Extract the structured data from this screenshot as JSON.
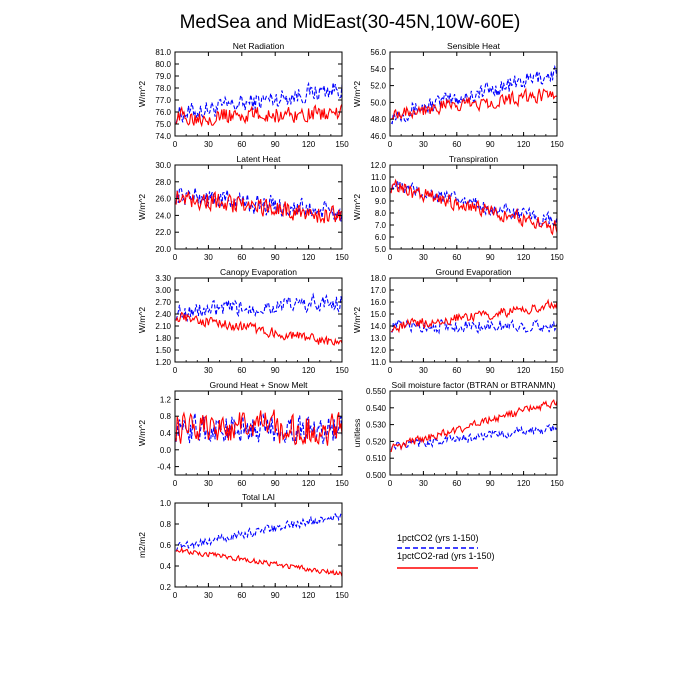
{
  "figure_title": "MedSea and MidEast(30-45N,10W-60E)",
  "legend": [
    {
      "label": "1pctCO2 (yrs 1-150)",
      "color": "#0000ff",
      "dashed": true
    },
    {
      "label": "1pctCO2-rad (yrs 1-150)",
      "color": "#ff0000",
      "dashed": false
    }
  ],
  "chart_data": [
    {
      "type": "line",
      "title": "Net Radiation",
      "ylabel": "W/m^2",
      "xlim": [
        0,
        150
      ],
      "ylim": [
        74,
        81
      ],
      "xticks": [
        0,
        30,
        60,
        90,
        120,
        150
      ],
      "yticks": [
        "74.0",
        "75.0",
        "76.0",
        "77.0",
        "78.0",
        "79.0",
        "80.0",
        "81.0"
      ],
      "series": [
        {
          "name": "1pctCO2 (yrs 1-150)",
          "start": 75.8,
          "end": 78.0,
          "noise": 0.9
        },
        {
          "name": "1pctCO2-rad (yrs 1-150)",
          "start": 75.6,
          "end": 75.9,
          "noise": 0.8
        }
      ]
    },
    {
      "type": "line",
      "title": "Sensible Heat",
      "ylabel": "W/m^2",
      "xlim": [
        0,
        150
      ],
      "ylim": [
        46,
        56
      ],
      "xticks": [
        0,
        30,
        60,
        90,
        120,
        150
      ],
      "yticks": [
        "46.0",
        "48.0",
        "50.0",
        "52.0",
        "54.0",
        "56.0"
      ],
      "series": [
        {
          "name": "1pctCO2 (yrs 1-150)",
          "start": 48.5,
          "end": 53.5,
          "noise": 1.2
        },
        {
          "name": "1pctCO2-rad (yrs 1-150)",
          "start": 48.8,
          "end": 51.0,
          "noise": 1.0
        }
      ]
    },
    {
      "type": "line",
      "title": "Latent Heat",
      "ylabel": "W/m^2",
      "xlim": [
        0,
        150
      ],
      "ylim": [
        20,
        30
      ],
      "xticks": [
        0,
        30,
        60,
        90,
        120,
        150
      ],
      "yticks": [
        "20.0",
        "22.0",
        "24.0",
        "26.0",
        "28.0",
        "30.0"
      ],
      "series": [
        {
          "name": "1pctCO2 (yrs 1-150)",
          "start": 26.5,
          "end": 24.2,
          "noise": 1.4
        },
        {
          "name": "1pctCO2-rad (yrs 1-150)",
          "start": 26.3,
          "end": 23.8,
          "noise": 1.3
        }
      ]
    },
    {
      "type": "line",
      "title": "Transpiration",
      "ylabel": "W/m^2",
      "xlim": [
        0,
        150
      ],
      "ylim": [
        5,
        12
      ],
      "xticks": [
        0,
        30,
        60,
        90,
        120,
        150
      ],
      "yticks": [
        "5.0",
        "6.0",
        "7.0",
        "8.0",
        "9.0",
        "10.0",
        "11.0",
        "12.0"
      ],
      "series": [
        {
          "name": "1pctCO2 (yrs 1-150)",
          "start": 10.3,
          "end": 7.2,
          "noise": 0.7
        },
        {
          "name": "1pctCO2-rad (yrs 1-150)",
          "start": 10.2,
          "end": 6.8,
          "noise": 0.7
        }
      ]
    },
    {
      "type": "line",
      "title": "Canopy Evaporation",
      "ylabel": "W/m^2",
      "xlim": [
        0,
        150
      ],
      "ylim": [
        1.2,
        3.3
      ],
      "xticks": [
        0,
        30,
        60,
        90,
        120,
        150
      ],
      "yticks": [
        "1.20",
        "1.50",
        "1.80",
        "2.10",
        "2.40",
        "2.70",
        "3.00",
        "3.30"
      ],
      "series": [
        {
          "name": "1pctCO2 (yrs 1-150)",
          "start": 2.45,
          "end": 2.7,
          "noise": 0.25
        },
        {
          "name": "1pctCO2-rad (yrs 1-150)",
          "start": 2.35,
          "end": 1.65,
          "noise": 0.15
        }
      ]
    },
    {
      "type": "line",
      "title": "Ground Evaporation",
      "ylabel": "W/m^2",
      "xlim": [
        0,
        150
      ],
      "ylim": [
        11,
        18
      ],
      "xticks": [
        0,
        30,
        60,
        90,
        120,
        150
      ],
      "yticks": [
        "11.0",
        "12.0",
        "13.0",
        "14.0",
        "15.0",
        "16.0",
        "17.0",
        "18.0"
      ],
      "series": [
        {
          "name": "1pctCO2 (yrs 1-150)",
          "start": 14.0,
          "end": 14.0,
          "noise": 0.6
        },
        {
          "name": "1pctCO2-rad (yrs 1-150)",
          "start": 13.9,
          "end": 15.8,
          "noise": 0.5
        }
      ]
    },
    {
      "type": "line",
      "title": "Ground Heat + Snow Melt",
      "ylabel": "W/m^2",
      "xlim": [
        0,
        150
      ],
      "ylim": [
        -0.6,
        1.4
      ],
      "xticks": [
        0,
        30,
        60,
        90,
        120,
        150
      ],
      "yticks": [
        "-0.4",
        "0.0",
        "0.4",
        "0.8",
        "1.2"
      ],
      "series": [
        {
          "name": "1pctCO2 (yrs 1-150)",
          "start": 0.5,
          "end": 0.5,
          "noise": 0.4
        },
        {
          "name": "1pctCO2-rad (yrs 1-150)",
          "start": 0.55,
          "end": 0.5,
          "noise": 0.45
        }
      ]
    },
    {
      "type": "line",
      "title": "Soil moisture factor (BTRAN or BTRANMN)",
      "ylabel": "unitless",
      "xlim": [
        0,
        150
      ],
      "ylim": [
        0.5,
        0.55
      ],
      "xticks": [
        0,
        30,
        60,
        90,
        120,
        150
      ],
      "yticks": [
        "0.500",
        "0.510",
        "0.520",
        "0.530",
        "0.540",
        "0.550"
      ],
      "series": [
        {
          "name": "1pctCO2 (yrs 1-150)",
          "start": 0.517,
          "end": 0.528,
          "noise": 0.003
        },
        {
          "name": "1pctCO2-rad (yrs 1-150)",
          "start": 0.516,
          "end": 0.544,
          "noise": 0.003
        }
      ]
    },
    {
      "type": "line",
      "title": "Total LAI",
      "ylabel": "m2/m2",
      "xlim": [
        0,
        150
      ],
      "ylim": [
        0.2,
        1.0
      ],
      "xticks": [
        0,
        30,
        60,
        90,
        120,
        150
      ],
      "yticks": [
        "0.2",
        "0.4",
        "0.6",
        "0.8",
        "1.0"
      ],
      "series": [
        {
          "name": "1pctCO2 (yrs 1-150)",
          "start": 0.58,
          "end": 0.88,
          "noise": 0.05
        },
        {
          "name": "1pctCO2-rad (yrs 1-150)",
          "start": 0.56,
          "end": 0.32,
          "noise": 0.03
        }
      ]
    }
  ]
}
